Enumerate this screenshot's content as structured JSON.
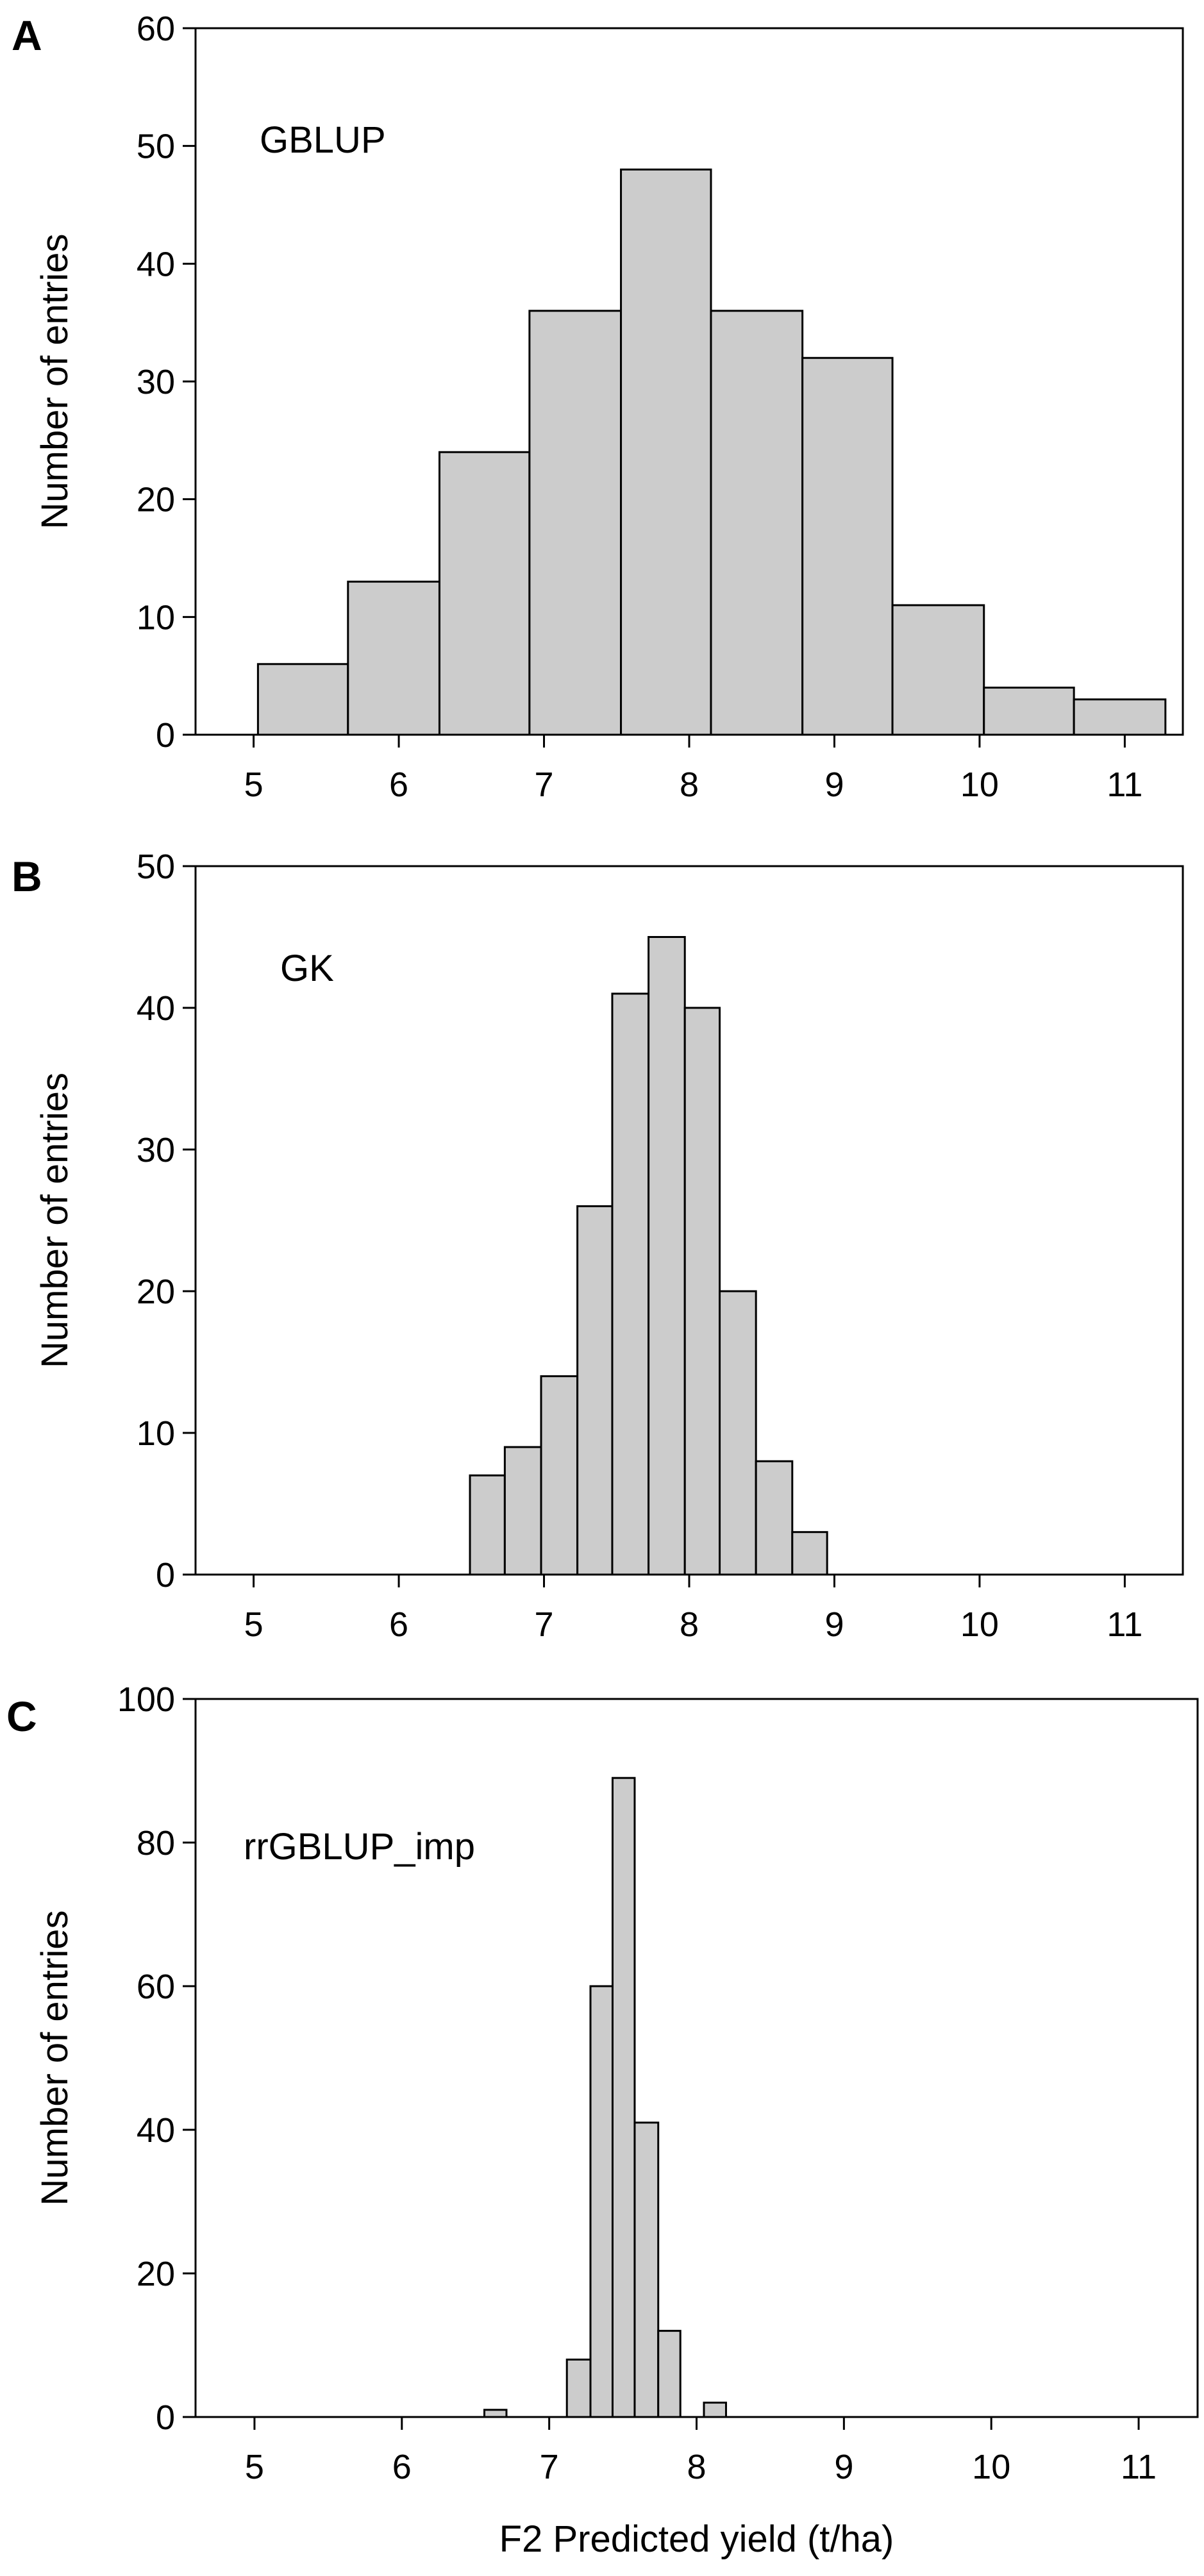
{
  "chart_data": [
    {
      "type": "bar",
      "panel_label": "A",
      "annotation": "GBLUP",
      "xlabel": "",
      "ylabel": "Number of entries",
      "xlim": [
        4.6,
        11.4
      ],
      "ylim": [
        0,
        60
      ],
      "xticks": [
        5,
        6,
        7,
        8,
        9,
        10,
        11
      ],
      "yticks": [
        0,
        10,
        20,
        30,
        40,
        50,
        60
      ],
      "bar_color": "#cccccc",
      "bins": [
        {
          "x0": 5.03,
          "x1": 5.65,
          "value": 6
        },
        {
          "x0": 5.65,
          "x1": 6.28,
          "value": 13
        },
        {
          "x0": 6.28,
          "x1": 6.9,
          "value": 24
        },
        {
          "x0": 6.9,
          "x1": 7.53,
          "value": 36
        },
        {
          "x0": 7.53,
          "x1": 8.15,
          "value": 48
        },
        {
          "x0": 8.15,
          "x1": 8.78,
          "value": 36
        },
        {
          "x0": 8.78,
          "x1": 9.4,
          "value": 32
        },
        {
          "x0": 9.4,
          "x1": 10.03,
          "value": 11
        },
        {
          "x0": 10.03,
          "x1": 10.65,
          "value": 4
        },
        {
          "x0": 10.65,
          "x1": 11.28,
          "value": 3
        }
      ]
    },
    {
      "type": "bar",
      "panel_label": "B",
      "annotation": "GK",
      "xlabel": "",
      "ylabel": "Number of entries",
      "xlim": [
        4.6,
        11.4
      ],
      "ylim": [
        0,
        50
      ],
      "xticks": [
        5,
        6,
        7,
        8,
        9,
        10,
        11
      ],
      "yticks": [
        0,
        10,
        20,
        30,
        40,
        50
      ],
      "bar_color": "#cccccc",
      "bins": [
        {
          "x0": 6.49,
          "x1": 6.73,
          "value": 7
        },
        {
          "x0": 6.73,
          "x1": 6.98,
          "value": 9
        },
        {
          "x0": 6.98,
          "x1": 7.23,
          "value": 14
        },
        {
          "x0": 7.23,
          "x1": 7.47,
          "value": 26
        },
        {
          "x0": 7.47,
          "x1": 7.72,
          "value": 41
        },
        {
          "x0": 7.72,
          "x1": 7.97,
          "value": 45
        },
        {
          "x0": 7.97,
          "x1": 8.21,
          "value": 40
        },
        {
          "x0": 8.21,
          "x1": 8.46,
          "value": 20
        },
        {
          "x0": 8.46,
          "x1": 8.71,
          "value": 8
        },
        {
          "x0": 8.71,
          "x1": 8.95,
          "value": 3
        }
      ]
    },
    {
      "type": "bar",
      "panel_label": "C",
      "annotation": "rrGBLUP_imp",
      "xlabel": "F2 Predicted yield (t/ha)",
      "ylabel": "Number of entries",
      "xlim": [
        4.6,
        11.4
      ],
      "ylim": [
        0,
        100
      ],
      "xticks": [
        5,
        6,
        7,
        8,
        9,
        10,
        11
      ],
      "yticks": [
        0,
        20,
        40,
        60,
        80,
        100
      ],
      "bar_color": "#cccccc",
      "bins": [
        {
          "x0": 6.56,
          "x1": 6.71,
          "value": 1
        },
        {
          "x0": 7.12,
          "x1": 7.28,
          "value": 8
        },
        {
          "x0": 7.28,
          "x1": 7.43,
          "value": 60
        },
        {
          "x0": 7.43,
          "x1": 7.58,
          "value": 89
        },
        {
          "x0": 7.58,
          "x1": 7.74,
          "value": 41
        },
        {
          "x0": 7.74,
          "x1": 7.89,
          "value": 12
        },
        {
          "x0": 8.05,
          "x1": 8.2,
          "value": 2
        }
      ]
    }
  ]
}
